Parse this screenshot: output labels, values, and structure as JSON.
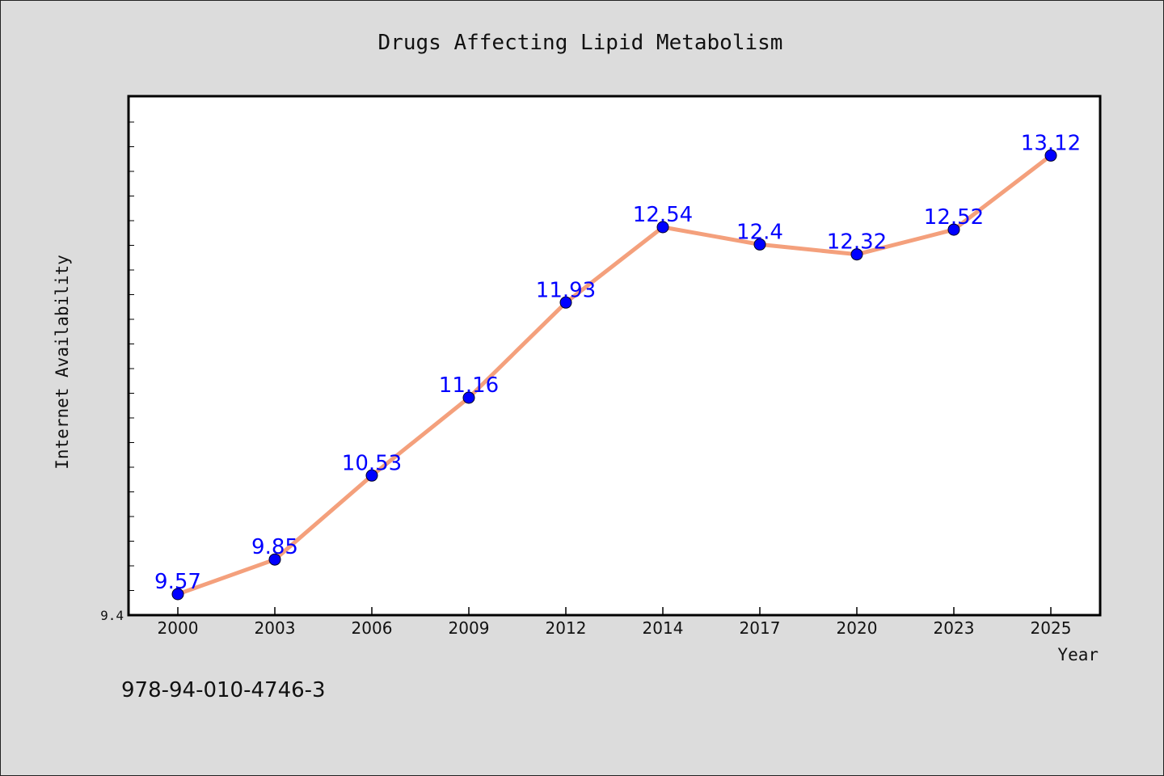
{
  "chart_data": {
    "type": "line",
    "title": "Drugs Affecting Lipid Metabolism",
    "xlabel": "Year",
    "ylabel": "Internet Availability",
    "categories": [
      "2000",
      "2003",
      "2006",
      "2009",
      "2012",
      "2014",
      "2017",
      "2020",
      "2023",
      "2025"
    ],
    "values": [
      9.57,
      9.85,
      10.53,
      11.16,
      11.93,
      12.54,
      12.4,
      12.32,
      12.52,
      13.12
    ],
    "data_labels": [
      "9.57",
      "9.85",
      "10.53",
      "11.16",
      "11.93",
      "12.54",
      "12.4",
      "12.32",
      "12.52",
      "13.12"
    ],
    "ylim": [
      9.4,
      13.6
    ],
    "yticks": [
      "9.4"
    ],
    "grid": false,
    "colors": {
      "line": "#f4a07c",
      "marker": "#0000ff",
      "label": "#0000ff"
    }
  },
  "annotations": {
    "isbn": "978-94-010-4746-3"
  }
}
